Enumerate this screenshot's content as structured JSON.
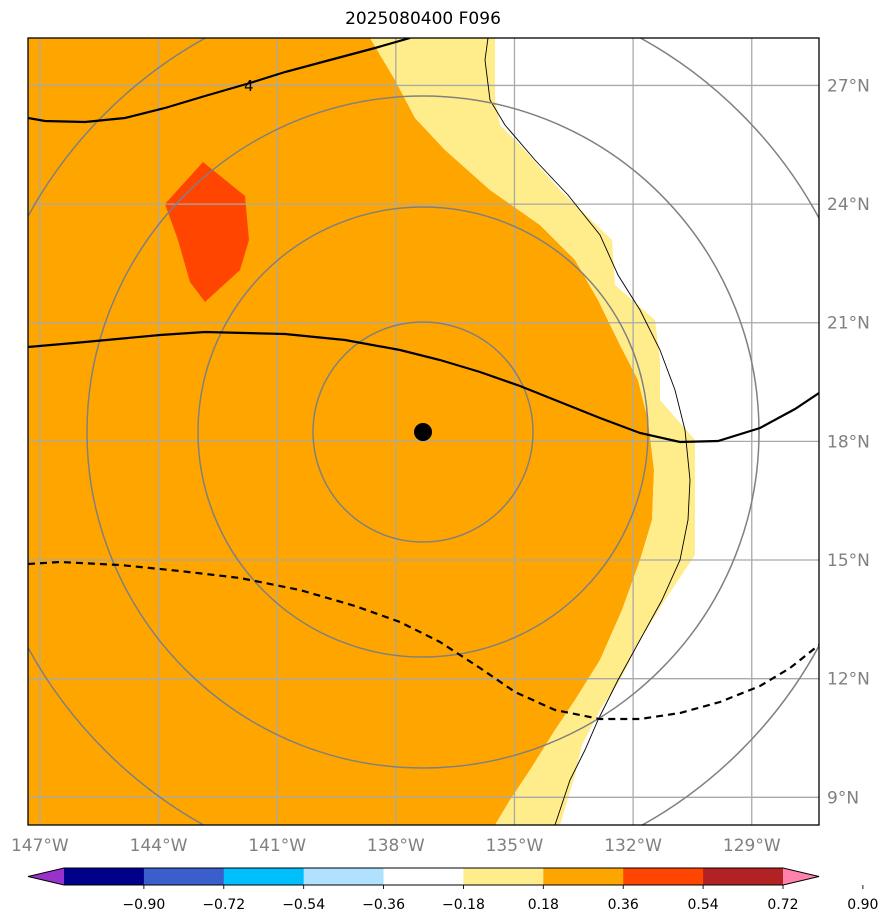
{
  "title": "2025080400 F096",
  "map": {
    "lon_range": [
      -147.3,
      -127.3
    ],
    "lat_range": [
      8.3,
      28.2
    ],
    "lon_ticks": [
      -147,
      -144,
      -141,
      -138,
      -135,
      -132,
      -129
    ],
    "lon_tick_labels": [
      "147°W",
      "144°W",
      "141°W",
      "138°W",
      "135°W",
      "132°W",
      "129°W"
    ],
    "lat_ticks": [
      9,
      12,
      15,
      18,
      21,
      24,
      27
    ],
    "lat_tick_labels": [
      "9°N",
      "12°N",
      "15°N",
      "18°N",
      "21°N",
      "24°N",
      "27°N"
    ],
    "storm_center": {
      "lon": -137.5,
      "lat": 18.2
    },
    "contour_label": "4",
    "grid": true
  },
  "colorbar": {
    "levels": [
      "−0.90",
      "−0.72",
      "−0.54",
      "−0.36",
      "−0.18",
      "0.18",
      "0.36",
      "0.54",
      "0.72",
      "0.90"
    ],
    "colors": [
      "#9932cc",
      "#00008b",
      "#3a5fcd",
      "#00bfff",
      "#b0e2ff",
      "#ffffff",
      "#ffec8b",
      "#ffa500",
      "#ff4500",
      "#b22222",
      "#ff82ab"
    ]
  },
  "colors": {
    "orange": "#ffa500",
    "light_yellow": "#ffec8b",
    "red_orange": "#ff4500",
    "grid": "#a9a9a9",
    "range_rings": "#808080"
  }
}
